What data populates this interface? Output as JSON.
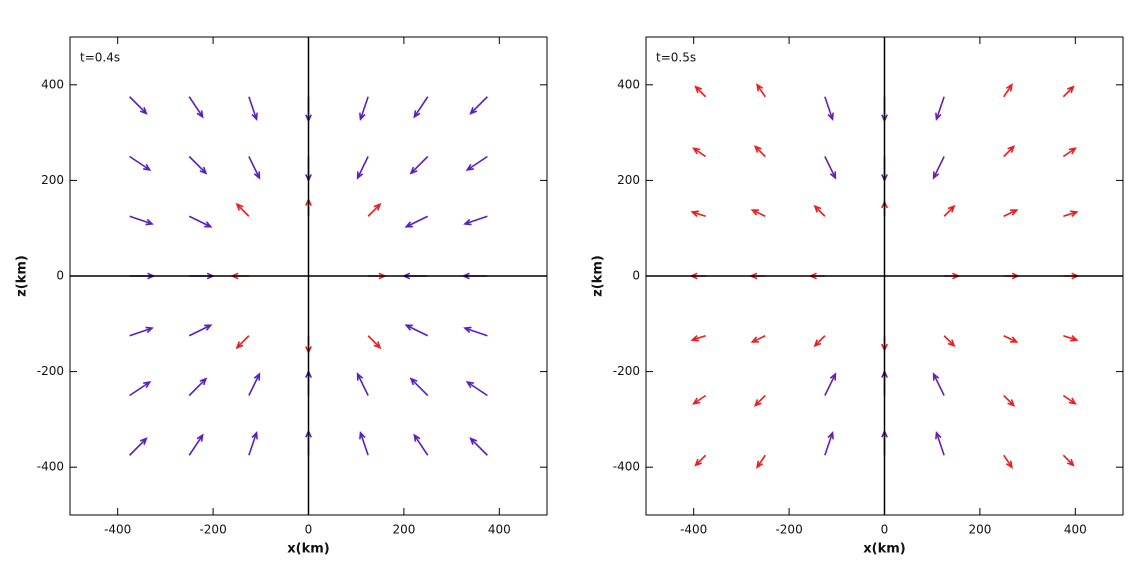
{
  "chart_data": [
    {
      "type": "quiver",
      "annotation": "t=0.4s",
      "x_label": "x(km)",
      "y_label": "z(km)",
      "xlim": [
        -500,
        500
      ],
      "ylim": [
        -500,
        500
      ],
      "xticks": [
        -400,
        -200,
        0,
        200,
        400
      ],
      "yticks": [
        -400,
        -200,
        0,
        200,
        400
      ],
      "series": [
        {
          "color": "#5a1fc0",
          "x": [
            -375,
            -250,
            -125,
            0,
            125,
            250,
            375,
            -375,
            -250,
            -125,
            0,
            125,
            250,
            375,
            -375,
            -250,
            250,
            375,
            -375,
            -250,
            250,
            375,
            -375,
            -250,
            250,
            375,
            -375,
            -250,
            -125,
            0,
            125,
            250,
            375,
            -375,
            -250,
            -125,
            0,
            125,
            250,
            375
          ],
          "y": [
            375,
            375,
            375,
            375,
            375,
            375,
            375,
            250,
            250,
            250,
            250,
            250,
            250,
            250,
            125,
            125,
            125,
            125,
            0,
            0,
            0,
            0,
            -125,
            -125,
            -125,
            -125,
            -250,
            -250,
            -250,
            -250,
            -250,
            -250,
            -250,
            -375,
            -375,
            -375,
            -375,
            -375,
            -375,
            -375
          ],
          "u": [
            35,
            28,
            16,
            0,
            -16,
            -28,
            -35,
            42,
            35,
            22,
            0,
            -22,
            -35,
            -42,
            47,
            45,
            -45,
            -47,
            50,
            50,
            -50,
            -50,
            47,
            45,
            -45,
            -47,
            42,
            35,
            22,
            0,
            -22,
            -35,
            -42,
            35,
            28,
            16,
            0,
            -16,
            -28,
            -35
          ],
          "v": [
            -35,
            -42,
            -47,
            -50,
            -47,
            -42,
            -35,
            -28,
            -35,
            -45,
            -50,
            -45,
            -35,
            -28,
            -16,
            -22,
            -22,
            -16,
            0,
            0,
            0,
            0,
            16,
            22,
            22,
            16,
            28,
            35,
            45,
            50,
            45,
            35,
            28,
            35,
            42,
            47,
            50,
            47,
            42,
            35
          ]
        },
        {
          "color": "#ee1c1c",
          "x": [
            -125,
            0,
            125,
            -125,
            125,
            -125,
            0,
            125
          ],
          "y": [
            125,
            125,
            125,
            0,
            0,
            -125,
            -125,
            -125
          ],
          "u": [
            -25,
            0,
            25,
            -35,
            35,
            -25,
            0,
            25
          ],
          "v": [
            25,
            35,
            25,
            0,
            0,
            -25,
            -35,
            -25
          ]
        }
      ]
    },
    {
      "type": "quiver",
      "annotation": "t=0.5s",
      "x_label": "x(km)",
      "y_label": "z(km)",
      "xlim": [
        -500,
        500
      ],
      "ylim": [
        -500,
        500
      ],
      "xticks": [
        -400,
        -200,
        0,
        200,
        400
      ],
      "yticks": [
        -400,
        -200,
        0,
        200,
        400
      ],
      "series": [
        {
          "color": "#6a1fa8",
          "x": [
            -125,
            0,
            125,
            -125,
            0,
            125,
            -125,
            0,
            125,
            -125,
            0,
            125
          ],
          "y": [
            375,
            375,
            375,
            250,
            250,
            250,
            -250,
            -250,
            -250,
            -375,
            -375,
            -375
          ],
          "u": [
            16,
            0,
            -16,
            22,
            0,
            -22,
            22,
            0,
            -22,
            16,
            0,
            -16
          ],
          "v": [
            -47,
            -50,
            -47,
            -45,
            -50,
            -45,
            45,
            50,
            45,
            47,
            50,
            47
          ]
        },
        {
          "color": "#ee1c1c",
          "x": [
            -375,
            -250,
            250,
            375,
            -375,
            -250,
            250,
            375,
            -375,
            -250,
            -125,
            0,
            125,
            250,
            375,
            -375,
            -250,
            -125,
            125,
            250,
            375,
            -375,
            -250,
            -125,
            0,
            125,
            250,
            375,
            -375,
            -250,
            250,
            375,
            -375,
            -250,
            250,
            375
          ],
          "y": [
            375,
            375,
            375,
            375,
            250,
            250,
            250,
            250,
            125,
            125,
            125,
            125,
            125,
            125,
            125,
            0,
            0,
            0,
            0,
            0,
            0,
            -125,
            -125,
            -125,
            -125,
            -125,
            -125,
            -125,
            -250,
            -250,
            -250,
            -250,
            -375,
            -375,
            -375,
            -375
          ],
          "u": [
            -21,
            -17,
            17,
            21,
            -25,
            -21,
            21,
            25,
            -28,
            -27,
            -21,
            0,
            21,
            27,
            28,
            -30,
            -30,
            -30,
            30,
            30,
            30,
            -28,
            -27,
            -21,
            0,
            21,
            27,
            28,
            -25,
            -21,
            21,
            25,
            -21,
            -17,
            17,
            21
          ],
          "v": [
            21,
            25,
            25,
            21,
            17,
            21,
            21,
            17,
            9,
            13,
            21,
            30,
            21,
            13,
            9,
            0,
            0,
            0,
            0,
            0,
            0,
            -9,
            -13,
            -21,
            -30,
            -21,
            -13,
            -9,
            -17,
            -21,
            -21,
            -17,
            -21,
            -25,
            -25,
            -21
          ]
        }
      ]
    }
  ]
}
